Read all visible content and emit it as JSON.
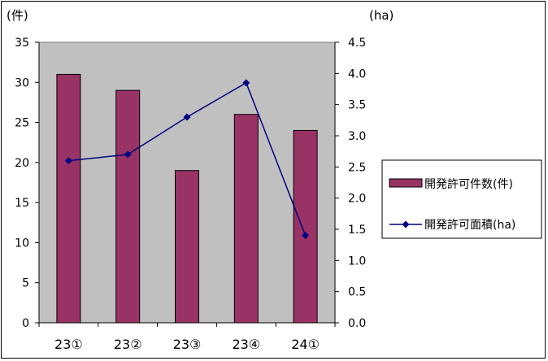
{
  "chart_data": {
    "type": "bar",
    "categories": [
      "23①",
      "23②",
      "23③",
      "23④",
      "24①"
    ],
    "series": [
      {
        "name": "開発許可件数(件)",
        "type": "bar",
        "axis": "left",
        "values": [
          31,
          29,
          19,
          26,
          24
        ],
        "color": "#993366"
      },
      {
        "name": "開発許可面積(ha)",
        "type": "line",
        "axis": "right",
        "values": [
          2.6,
          2.7,
          3.3,
          3.85,
          1.4
        ],
        "color": "#000080"
      }
    ],
    "y_left": {
      "unit_label": "(件)",
      "ylim": [
        0,
        35
      ],
      "ticks": [
        "0",
        "5",
        "10",
        "15",
        "20",
        "25",
        "30",
        "35"
      ]
    },
    "y_right": {
      "unit_label": "(ha)",
      "ylim": [
        0,
        4.5
      ],
      "ticks": [
        "0.0",
        "0.5",
        "1.0",
        "1.5",
        "2.0",
        "2.5",
        "3.0",
        "3.5",
        "4.0",
        "4.5"
      ]
    },
    "grid": false,
    "legend": "right",
    "plot_background": "#c0c0c0"
  }
}
